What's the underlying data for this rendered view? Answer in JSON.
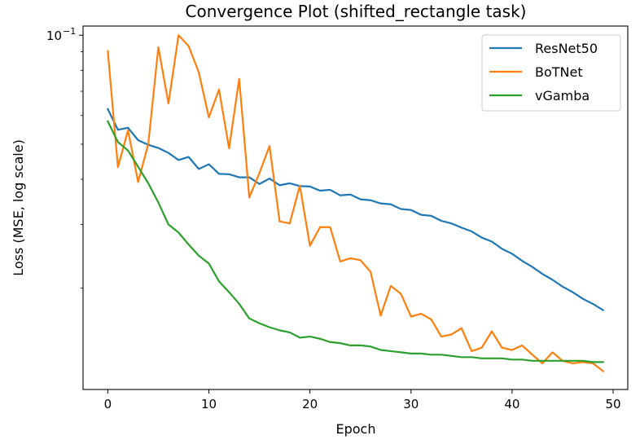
{
  "chart_data": {
    "type": "line",
    "title": "Convergence Plot (shifted_rectangle task)",
    "xlabel": "Epoch",
    "ylabel": "Loss (MSE, log scale)",
    "yscale": "log",
    "xlim": [
      -2.45,
      51.45
    ],
    "ylim": [
      0.0105,
      0.106
    ],
    "xticks": [
      0,
      10,
      20,
      30,
      40,
      50
    ],
    "xtick_labels": [
      "0",
      "10",
      "20",
      "30",
      "40",
      "50"
    ],
    "ytick_base": "10",
    "ytick_exponent": "−1",
    "ytick_value": 0.1,
    "minor_yticks": [
      0.02,
      0.03,
      0.04,
      0.05,
      0.06,
      0.07,
      0.08,
      0.09
    ],
    "legend_position": "top-right",
    "x": [
      0,
      1,
      2,
      3,
      4,
      5,
      6,
      7,
      8,
      9,
      10,
      11,
      12,
      13,
      14,
      15,
      16,
      17,
      18,
      19,
      20,
      21,
      22,
      23,
      24,
      25,
      26,
      27,
      28,
      29,
      30,
      31,
      32,
      33,
      34,
      35,
      36,
      37,
      38,
      39,
      40,
      41,
      42,
      43,
      44,
      45,
      46,
      47,
      48,
      49
    ],
    "series": [
      {
        "name": "ResNet50",
        "color": "#1f77b4",
        "values": [
          0.0625,
          0.0548,
          0.0555,
          0.0513,
          0.0498,
          0.0488,
          0.0473,
          0.0452,
          0.0461,
          0.0427,
          0.044,
          0.0414,
          0.0413,
          0.0405,
          0.0405,
          0.0388,
          0.0402,
          0.0385,
          0.039,
          0.0383,
          0.0382,
          0.0372,
          0.0374,
          0.0361,
          0.0363,
          0.0352,
          0.035,
          0.0343,
          0.0341,
          0.0331,
          0.0329,
          0.0319,
          0.0317,
          0.0307,
          0.0302,
          0.0294,
          0.0287,
          0.0276,
          0.0269,
          0.0257,
          0.0249,
          0.0238,
          0.0229,
          0.0219,
          0.0211,
          0.0202,
          0.0195,
          0.0187,
          0.0181,
          0.0174
        ]
      },
      {
        "name": "BoTNet",
        "color": "#ff7f0e",
        "values": [
          0.0904,
          0.0432,
          0.0546,
          0.0393,
          0.05,
          0.0926,
          0.0648,
          0.1,
          0.0933,
          0.079,
          0.0593,
          0.0708,
          0.0487,
          0.0758,
          0.0356,
          0.0416,
          0.0494,
          0.0306,
          0.0302,
          0.0384,
          0.0262,
          0.0295,
          0.0295,
          0.0237,
          0.0242,
          0.0239,
          0.0222,
          0.0168,
          0.0203,
          0.0193,
          0.0167,
          0.017,
          0.0164,
          0.0147,
          0.0149,
          0.0155,
          0.0134,
          0.0137,
          0.0152,
          0.0137,
          0.0135,
          0.0139,
          0.0131,
          0.0124,
          0.0133,
          0.0126,
          0.0124,
          0.0125,
          0.0124,
          0.0118
        ]
      },
      {
        "name": "vGamba",
        "color": "#2ca02c",
        "values": [
          0.0578,
          0.0507,
          0.048,
          0.0433,
          0.039,
          0.0345,
          0.03,
          0.0285,
          0.0264,
          0.0246,
          0.0234,
          0.0209,
          0.0195,
          0.0181,
          0.0165,
          0.016,
          0.0156,
          0.0153,
          0.0151,
          0.0146,
          0.0147,
          0.0145,
          0.0142,
          0.0141,
          0.0139,
          0.0139,
          0.0138,
          0.0135,
          0.0134,
          0.0133,
          0.0132,
          0.0132,
          0.0131,
          0.0131,
          0.013,
          0.0129,
          0.0129,
          0.0128,
          0.0128,
          0.0128,
          0.0127,
          0.0127,
          0.0126,
          0.0126,
          0.0126,
          0.0126,
          0.0126,
          0.0126,
          0.0125,
          0.0125
        ]
      }
    ]
  }
}
